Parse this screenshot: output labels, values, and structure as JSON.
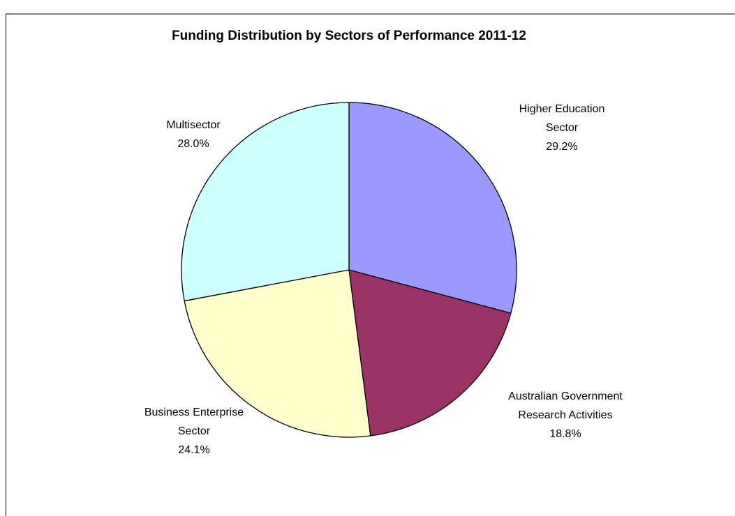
{
  "chart_data": {
    "type": "pie",
    "title": "Funding Distribution by Sectors of Performance 2011-12",
    "categories": [
      "Higher Education Sector",
      "Australian Government Research Activities",
      "Business Enterprise Sector",
      "Multisector"
    ],
    "values": [
      29.2,
      18.8,
      24.1,
      28.0
    ],
    "value_labels": [
      "29.2%",
      "18.8%",
      "24.1%",
      "28.0%"
    ],
    "colors": [
      "#9999ff",
      "#993366",
      "#ffffcc",
      "#ccffff"
    ]
  }
}
